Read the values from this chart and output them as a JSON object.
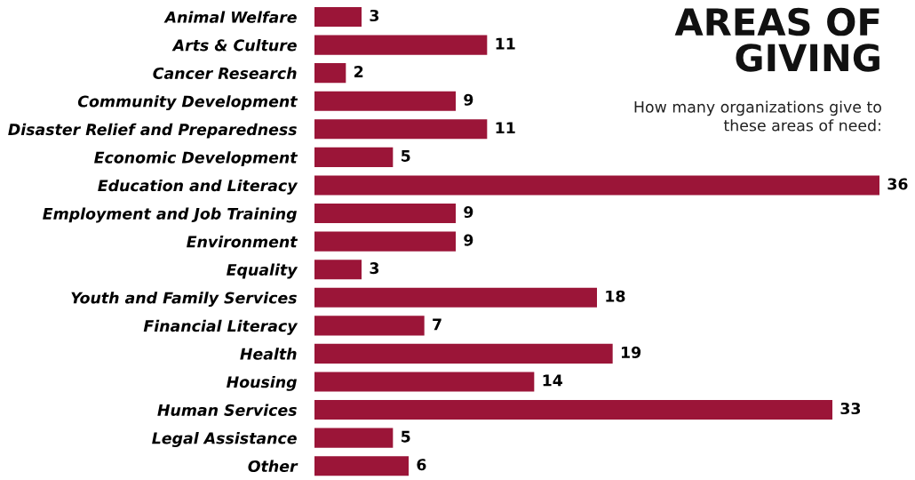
{
  "chart_data": {
    "type": "bar",
    "orientation": "horizontal",
    "title": "AREAS OF\nGIVING",
    "subtitle": "How many organizations give to\nthese areas of need:",
    "categories": [
      "Animal Welfare",
      "Arts & Culture",
      "Cancer Research",
      "Community Development",
      "Disaster Relief and Preparedness",
      "Economic Development",
      "Education and Literacy",
      "Employment and Job Training",
      "Environment",
      "Equality",
      "Youth and Family Services",
      "Financial Literacy",
      "Health",
      "Housing",
      "Human Services",
      "Legal Assistance",
      "Other"
    ],
    "values": [
      3,
      11,
      2,
      9,
      11,
      5,
      36,
      9,
      9,
      3,
      18,
      7,
      19,
      14,
      33,
      5,
      6
    ],
    "color": "#9b1538",
    "data_labels": true,
    "tick_labels": "y",
    "grid": false,
    "legend": false
  }
}
